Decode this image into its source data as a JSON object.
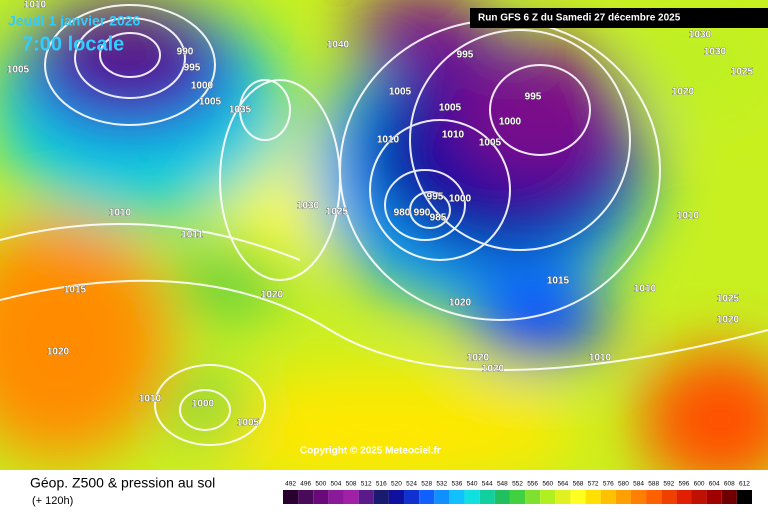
{
  "header": {
    "date": "Jeudi 1 janvier 2026",
    "time": "7:00 locale",
    "run": "Run GFS 6 Z du Samedi 27 décembre 2025"
  },
  "map": {
    "isobar_labels": [
      "1010",
      "1005",
      "990",
      "995",
      "1000",
      "1005",
      "1040",
      "1035",
      "995",
      "1005",
      "995",
      "1005",
      "1000",
      "1010",
      "1005",
      "1010",
      "995",
      "1000",
      "990",
      "985",
      "980",
      "1030",
      "1025",
      "1010",
      "1011",
      "1015",
      "1020",
      "1020",
      "1020",
      "1015",
      "1010",
      "1010",
      "1025",
      "1020",
      "1010",
      "1020",
      "1020",
      "1010",
      "1000",
      "1005",
      "1030",
      "1030",
      "1025",
      "1020"
    ],
    "copyright": "Copyright © 2025 Meteociel.fr"
  },
  "footer": {
    "title": "Géop. Z500 & pression au sol",
    "lead": "(+ 120h)"
  },
  "legend": {
    "labels": [
      492,
      496,
      500,
      504,
      508,
      512,
      516,
      520,
      524,
      528,
      532,
      536,
      540,
      544,
      548,
      552,
      556,
      560,
      564,
      568,
      572,
      576,
      580,
      584,
      588,
      592,
      596,
      600,
      604,
      608,
      612
    ],
    "colors": [
      "#2a0030",
      "#4a0a5a",
      "#6a0a7a",
      "#8a1a9a",
      "#a020a8",
      "#5a1a8a",
      "#1a1a70",
      "#1010a0",
      "#1030d0",
      "#1060ff",
      "#1090ff",
      "#10c0ff",
      "#10e0e0",
      "#10d0a0",
      "#20c060",
      "#40d040",
      "#80e030",
      "#b0f020",
      "#e0f020",
      "#ffff20",
      "#ffe000",
      "#ffc000",
      "#ffa000",
      "#ff8000",
      "#ff6000",
      "#f04000",
      "#e02000",
      "#c01000",
      "#a00000",
      "#700000",
      "#000000"
    ]
  }
}
